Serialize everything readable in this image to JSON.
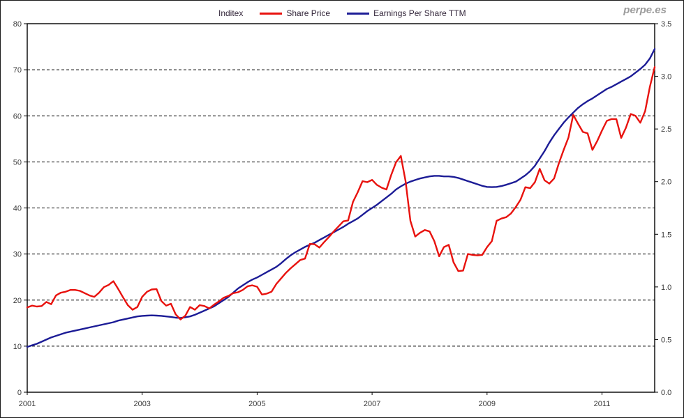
{
  "header": {
    "title": "Inditex",
    "legend": [
      {
        "label": "Share Price",
        "color": "#e8120e"
      },
      {
        "label": "Earnings Per Share TTM",
        "color": "#1c1c96"
      }
    ],
    "watermark": "perpe.es"
  },
  "chart_data": {
    "type": "line",
    "title": "Inditex",
    "frequency": "monthly",
    "x_start_year": 2001,
    "x_end_year": 2011,
    "x_tick_labels": [
      "2001",
      "2003",
      "2005",
      "2007",
      "2009",
      "2011"
    ],
    "grid": "horizontal-dashed",
    "legend_position": "top",
    "left_axis": {
      "ticks": [
        0,
        10,
        20,
        30,
        40,
        50,
        60,
        70,
        80
      ],
      "ylim": [
        0,
        80
      ]
    },
    "right_axis": {
      "ticks": [
        "0.0",
        "0.5",
        "1.0",
        "1.5",
        "2.0",
        "2.5",
        "3.0",
        "3.5"
      ],
      "ylim": [
        0,
        3.5
      ]
    },
    "series": [
      {
        "name": "Share Price",
        "axis": "left",
        "color": "#e8120e",
        "values": [
          18.4,
          18.8,
          18.6,
          18.7,
          19.6,
          19.1,
          21.0,
          21.6,
          21.8,
          22.2,
          22.2,
          22.0,
          21.5,
          21.0,
          20.7,
          21.6,
          22.8,
          23.3,
          24.1,
          22.4,
          20.6,
          18.9,
          17.9,
          18.5,
          20.7,
          21.8,
          22.3,
          22.4,
          19.8,
          18.8,
          19.2,
          16.9,
          15.8,
          16.6,
          18.5,
          17.9,
          18.9,
          18.7,
          18.2,
          19.0,
          19.7,
          20.5,
          20.9,
          21.5,
          21.7,
          22.2,
          23.0,
          23.2,
          22.9,
          21.2,
          21.4,
          21.8,
          23.5,
          24.7,
          25.9,
          26.9,
          27.8,
          28.7,
          29.0,
          32.2,
          32.1,
          31.4,
          32.6,
          33.7,
          34.9,
          36.0,
          37.1,
          37.3,
          41.3,
          43.4,
          45.8,
          45.6,
          46.1,
          45.0,
          44.4,
          44.0,
          47.2,
          49.9,
          51.3,
          45.8,
          37.2,
          33.8,
          34.6,
          35.2,
          34.9,
          32.8,
          29.5,
          31.5,
          32.0,
          28.2,
          26.3,
          26.4,
          30.0,
          29.8,
          29.7,
          29.8,
          31.5,
          32.8,
          37.2,
          37.7,
          38.0,
          38.8,
          40.2,
          41.8,
          44.5,
          44.3,
          45.6,
          48.5,
          46.0,
          45.3,
          46.4,
          49.7,
          52.6,
          55.3,
          60.2,
          58.3,
          56.5,
          56.2,
          52.6,
          54.5,
          56.8,
          58.9,
          59.3,
          59.3,
          55.2,
          57.4,
          60.4,
          60.0,
          58.5,
          61.0,
          66.3,
          70.6
        ]
      },
      {
        "name": "Earnings Per Share TTM",
        "axis": "right",
        "color": "#1c1c96",
        "values": [
          0.43,
          0.445,
          0.46,
          0.48,
          0.5,
          0.52,
          0.535,
          0.55,
          0.565,
          0.575,
          0.585,
          0.595,
          0.605,
          0.615,
          0.625,
          0.635,
          0.645,
          0.655,
          0.665,
          0.68,
          0.69,
          0.7,
          0.71,
          0.72,
          0.725,
          0.728,
          0.73,
          0.728,
          0.725,
          0.72,
          0.715,
          0.708,
          0.705,
          0.712,
          0.72,
          0.735,
          0.755,
          0.775,
          0.795,
          0.815,
          0.845,
          0.875,
          0.905,
          0.945,
          0.985,
          1.015,
          1.045,
          1.07,
          1.09,
          1.115,
          1.14,
          1.165,
          1.19,
          1.225,
          1.265,
          1.3,
          1.33,
          1.355,
          1.38,
          1.4,
          1.42,
          1.445,
          1.47,
          1.495,
          1.52,
          1.545,
          1.57,
          1.6,
          1.625,
          1.65,
          1.685,
          1.72,
          1.75,
          1.78,
          1.815,
          1.85,
          1.885,
          1.925,
          1.955,
          1.98,
          2.0,
          2.015,
          2.03,
          2.04,
          2.05,
          2.055,
          2.055,
          2.05,
          2.05,
          2.045,
          2.035,
          2.02,
          2.005,
          1.99,
          1.975,
          1.96,
          1.95,
          1.948,
          1.95,
          1.958,
          1.97,
          1.985,
          2.0,
          2.03,
          2.06,
          2.1,
          2.15,
          2.22,
          2.29,
          2.37,
          2.44,
          2.5,
          2.56,
          2.61,
          2.655,
          2.7,
          2.735,
          2.765,
          2.79,
          2.82,
          2.85,
          2.88,
          2.9,
          2.925,
          2.95,
          2.975,
          3.0,
          3.035,
          3.07,
          3.11,
          3.17,
          3.26
        ]
      }
    ]
  }
}
